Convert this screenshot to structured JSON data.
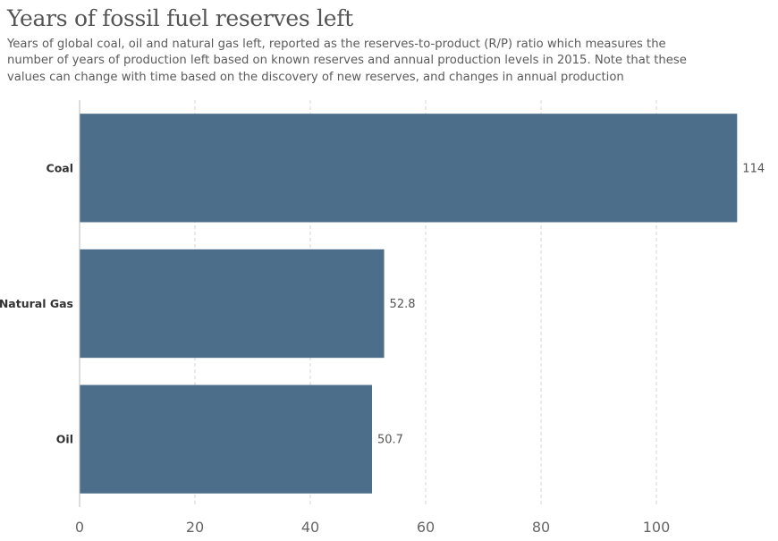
{
  "chart_data": {
    "type": "bar",
    "orientation": "horizontal",
    "title": "Years of fossil fuel reserves left",
    "subtitle": "Years of global coal, oil and natural gas left, reported as the reserves-to-product (R/P) ratio which measures the number of years of production left based on known reserves and annual production levels in 2015. Note that these values can change with time based on the discovery of new reserves, and changes in annual production",
    "categories": [
      "Coal",
      "Natural Gas",
      "Oil"
    ],
    "values": [
      114,
      52.8,
      50.7
    ],
    "value_labels": [
      "114",
      "52.8",
      "50.7"
    ],
    "xlim": [
      0,
      120
    ],
    "xticks": [
      0,
      20,
      40,
      60,
      80,
      100
    ],
    "xtick_labels": [
      "0",
      "20",
      "40",
      "60",
      "80",
      "100"
    ],
    "grid": "vertical dashed",
    "bar_color": "#4d6e8a"
  }
}
